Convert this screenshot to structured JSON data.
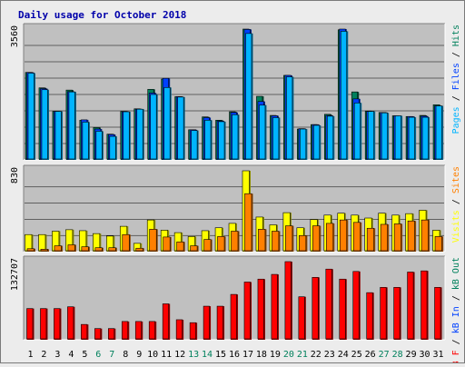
{
  "chart_data": {
    "type": "bar",
    "title": "Daily usage for October 2018",
    "categories": [
      "1",
      "2",
      "3",
      "4",
      "5",
      "6",
      "7",
      "8",
      "9",
      "10",
      "11",
      "12",
      "13",
      "14",
      "15",
      "16",
      "17",
      "18",
      "19",
      "20",
      "21",
      "22",
      "23",
      "24",
      "25",
      "26",
      "27",
      "28",
      "29",
      "30",
      "31"
    ],
    "weekend_days": [
      "6",
      "7",
      "13",
      "14",
      "20",
      "21",
      "27",
      "28"
    ],
    "panels": [
      {
        "id": "hits",
        "max_label": "3560",
        "ymax": 3560,
        "legend": [
          {
            "text": "Pages",
            "color": "#00b4ff"
          },
          {
            "text": "Files",
            "color": "#0040ff"
          },
          {
            "text": "Hits",
            "color": "#00805c"
          }
        ],
        "series": [
          {
            "name": "Hits",
            "color": "#00805c",
            "values": [
              2380,
              1960,
              1320,
              1900,
              1080,
              880,
              700,
              1320,
              1390,
              1920,
              2200,
              1720,
              820,
              1170,
              1080,
              1310,
              3560,
              1730,
              1210,
              2300,
              840,
              960,
              1240,
              3540,
              1850,
              1330,
              1290,
              1200,
              1180,
              1210,
              1500
            ]
          },
          {
            "name": "Files",
            "color": "#0040ff",
            "values": [
              2380,
              1940,
              1320,
              1860,
              1090,
              840,
              690,
              1310,
              1380,
              1820,
              2220,
              1720,
              820,
              1150,
              1060,
              1290,
              3550,
              1590,
              1200,
              2300,
              850,
              960,
              1210,
              3560,
              1660,
              1320,
              1290,
              1200,
              1180,
              1190,
              1470
            ]
          },
          {
            "name": "Pages",
            "color": "#00b4ff",
            "values": [
              2360,
              1910,
              1320,
              1850,
              1030,
              780,
              640,
              1310,
              1380,
              1780,
              1970,
              1710,
              800,
              1080,
              1040,
              1230,
              3440,
              1490,
              1150,
              2260,
              840,
              940,
              1190,
              3500,
              1550,
              1320,
              1280,
              1200,
              1160,
              1160,
              1470
            ]
          }
        ]
      },
      {
        "id": "visits",
        "max_label": "830",
        "ymax": 830,
        "legend": [
          {
            "text": "Visits",
            "color": "#ffff00"
          },
          {
            "text": "Sites",
            "color": "#ff8000"
          }
        ],
        "series": [
          {
            "name": "Visits",
            "color": "#ffff00",
            "values": [
              175,
              175,
              210,
              225,
              215,
              185,
              160,
              260,
              85,
              325,
              220,
              195,
              155,
              215,
              245,
              290,
              830,
              355,
              275,
              400,
              245,
              330,
              375,
              395,
              375,
              345,
              395,
              375,
              390,
              425,
              220
            ]
          },
          {
            "name": "Sites",
            "color": "#ff8000",
            "values": [
              30,
              25,
              60,
              70,
              50,
              40,
              40,
              175,
              35,
              230,
              150,
              100,
              60,
              125,
              155,
              210,
              595,
              230,
              210,
              265,
              165,
              265,
              290,
              325,
              300,
              240,
              280,
              285,
              315,
              325,
              155
            ]
          }
        ]
      },
      {
        "id": "kbytes",
        "max_label": "132707",
        "ymax": 132707,
        "legend": [
          {
            "text": "kB F",
            "color": "#ff0000"
          },
          {
            "text": "kB In",
            "color": "#0040ff"
          },
          {
            "text": "kB Out",
            "color": "#00805c"
          }
        ],
        "series": [
          {
            "name": "kB F",
            "color": "#ff0000",
            "values": [
              53000,
              53000,
              53000,
              56000,
              26000,
              19000,
              19000,
              31000,
              31000,
              31000,
              61000,
              34000,
              29000,
              57000,
              57000,
              77000,
              98000,
              103000,
              111000,
              132707,
              73000,
              106000,
              120000,
              103000,
              116000,
              80000,
              89000,
              89000,
              115000,
              117000,
              89000
            ]
          }
        ]
      }
    ]
  }
}
